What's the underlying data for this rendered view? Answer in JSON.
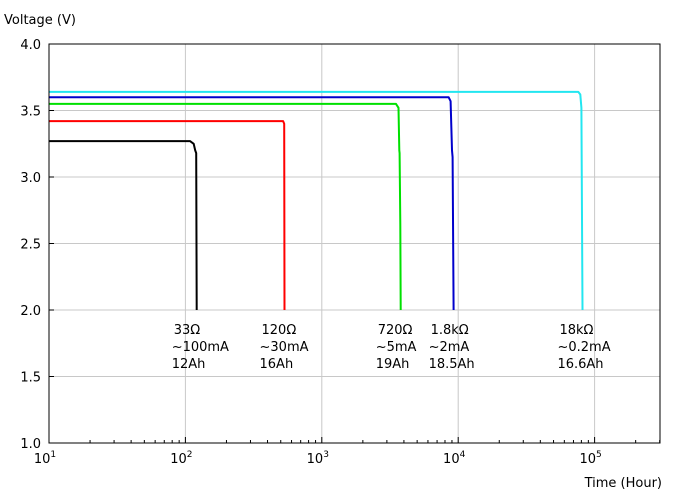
{
  "chart_data": {
    "type": "line",
    "ylabel": "Voltage (V)",
    "xlabel": "Time (Hour)",
    "xscale": "log",
    "xlim": [
      10,
      300000
    ],
    "ylim": [
      1.0,
      4.0
    ],
    "grid": true,
    "x_ticks": [
      {
        "base": "10",
        "exp": "1",
        "value": 10
      },
      {
        "base": "10",
        "exp": "2",
        "value": 100
      },
      {
        "base": "10",
        "exp": "3",
        "value": 1000
      },
      {
        "base": "10",
        "exp": "4",
        "value": 10000
      },
      {
        "base": "10",
        "exp": "5",
        "value": 100000
      }
    ],
    "y_ticks": [
      "1.0",
      "1.5",
      "2.0",
      "2.5",
      "3.0",
      "3.5",
      "4.0"
    ],
    "y_tick_values": [
      1.0,
      1.5,
      2.0,
      2.5,
      3.0,
      3.5,
      4.0
    ],
    "series": [
      {
        "color": "#000000",
        "annotation": [
          "33Ω",
          "~100mA",
          "12Ah"
        ],
        "points": [
          [
            10,
            3.27
          ],
          [
            108,
            3.27
          ],
          [
            115,
            3.25
          ],
          [
            118,
            3.2
          ],
          [
            120,
            3.18
          ],
          [
            121,
            2.0
          ]
        ]
      },
      {
        "color": "#ff0000",
        "annotation": [
          "120Ω",
          "~30mA",
          "16Ah"
        ],
        "points": [
          [
            10,
            3.42
          ],
          [
            520,
            3.42
          ],
          [
            530,
            3.4
          ],
          [
            533,
            2.0
          ]
        ]
      },
      {
        "color": "#00e000",
        "annotation": [
          "720Ω",
          "~5mA",
          "19Ah"
        ],
        "points": [
          [
            10,
            3.55
          ],
          [
            3500,
            3.55
          ],
          [
            3650,
            3.52
          ],
          [
            3700,
            3.2
          ],
          [
            3720,
            3.18
          ],
          [
            3760,
            2.65
          ],
          [
            3790,
            2.0
          ]
        ]
      },
      {
        "color": "#0000cc",
        "annotation": [
          "1.8kΩ",
          "~2mA",
          "18.5Ah"
        ],
        "points": [
          [
            10,
            3.6
          ],
          [
            8500,
            3.6
          ],
          [
            8800,
            3.57
          ],
          [
            9000,
            3.2
          ],
          [
            9100,
            3.15
          ],
          [
            9250,
            2.0
          ]
        ]
      },
      {
        "color": "#22e6f0",
        "annotation": [
          "18kΩ",
          "~0.2mA",
          "16.6Ah"
        ],
        "points": [
          [
            10,
            3.64
          ],
          [
            76000,
            3.64
          ],
          [
            78500,
            3.62
          ],
          [
            80000,
            3.52
          ],
          [
            81500,
            2.0
          ]
        ]
      }
    ]
  }
}
